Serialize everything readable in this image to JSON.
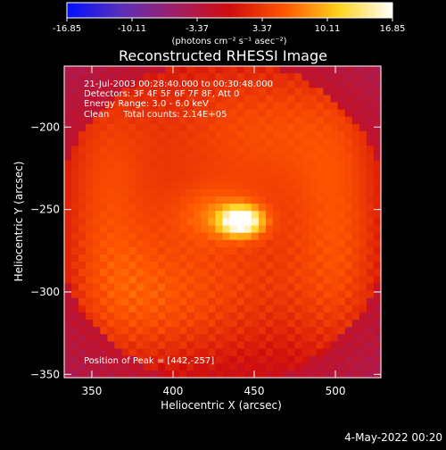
{
  "chart_data": {
    "type": "heatmap",
    "title": "Reconstructed RHESSI Image",
    "xlabel": "Heliocentric X (arcsec)",
    "ylabel": "Heliocentric Y (arcsec)",
    "xlim": [
      333,
      528
    ],
    "ylim": [
      -352,
      -163
    ],
    "x_ticks": [
      350,
      400,
      450,
      500
    ],
    "y_ticks": [
      -200,
      -250,
      -300,
      -350
    ],
    "colorbar": {
      "label": "(photons cm⁻² s⁻¹ asec⁻²)",
      "ticks": [
        "-16.85",
        "-10.11",
        "-3.37",
        "3.37",
        "10.11",
        "16.85"
      ],
      "range": [
        -16.85,
        16.85
      ],
      "colors": [
        "#0010ff",
        "#5a2fb8",
        "#a11f66",
        "#d00d0d",
        "#ff5500",
        "#ffd21a",
        "#ffffff"
      ]
    },
    "annotations": [
      "21-Jul-2003 00:28:40.000 to 00:30:48.000",
      "Detectors: 3F 4F 5F 6F 7F 8F, Att 0",
      "Energy Range: 3.0 - 6.0 keV",
      "Clean     Total counts: 2.14E+05",
      "Position of Peak = [442,-257]"
    ],
    "peak": {
      "x": 442,
      "y": -257,
      "value": 16.85
    },
    "components": [
      {
        "x": 442,
        "y": -257,
        "sx": 9,
        "sy": 6,
        "amp": 16.85
      },
      {
        "x": 425,
        "y": -253,
        "sx": 18,
        "sy": 12,
        "amp": 3.5
      },
      {
        "x": 430,
        "y": -200,
        "sx": 60,
        "sy": 45,
        "amp": 6.5
      },
      {
        "x": 430,
        "y": -300,
        "sx": 60,
        "sy": 40,
        "amp": 6.5
      },
      {
        "x": 355,
        "y": -245,
        "sx": 22,
        "sy": 60,
        "amp": 5
      },
      {
        "x": 505,
        "y": -260,
        "sx": 22,
        "sy": 65,
        "amp": 5.5
      },
      {
        "x": 380,
        "y": -310,
        "sx": 30,
        "sy": 30,
        "amp": 3
      },
      {
        "x": 468,
        "y": -200,
        "sx": 30,
        "sy": 30,
        "amp": 2
      }
    ],
    "background": -3.5,
    "corner_level": -4.0
  },
  "footer": {
    "date": "4-May-2022 00:20"
  }
}
